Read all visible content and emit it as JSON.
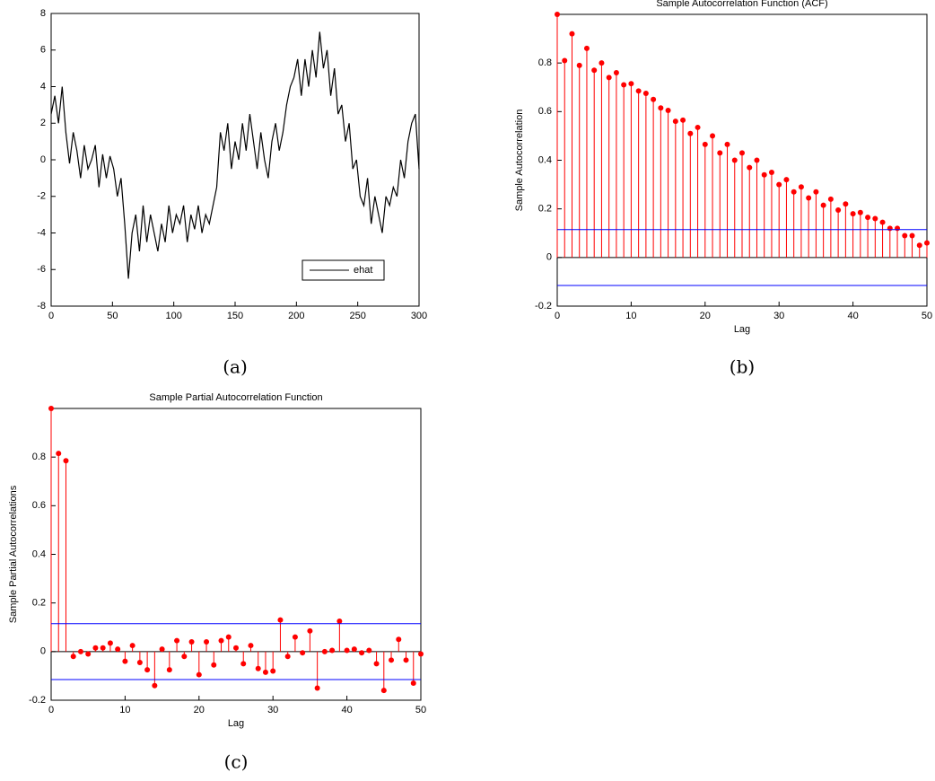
{
  "chart_data": [
    {
      "type": "line",
      "caption": "(a)",
      "x": [
        0,
        3,
        6,
        9,
        12,
        15,
        18,
        21,
        24,
        27,
        30,
        33,
        36,
        39,
        42,
        45,
        48,
        51,
        54,
        57,
        60,
        63,
        66,
        69,
        72,
        75,
        78,
        81,
        84,
        87,
        90,
        93,
        96,
        99,
        102,
        105,
        108,
        111,
        114,
        117,
        120,
        123,
        126,
        129,
        132,
        135,
        138,
        141,
        144,
        147,
        150,
        153,
        156,
        159,
        162,
        165,
        168,
        171,
        174,
        177,
        180,
        183,
        186,
        189,
        192,
        195,
        198,
        201,
        204,
        207,
        210,
        213,
        216,
        219,
        222,
        225,
        228,
        231,
        234,
        237,
        240,
        243,
        246,
        249,
        252,
        255,
        258,
        261,
        264,
        267,
        270,
        273,
        276,
        279,
        282,
        285,
        288,
        291,
        294,
        297,
        300
      ],
      "series": [
        {
          "name": "ehat",
          "color": "#000000",
          "values": [
            2.5,
            3.5,
            2,
            4,
            1.5,
            -0.2,
            1.5,
            0.5,
            -1,
            0.8,
            -0.5,
            0,
            0.8,
            -1.5,
            0.3,
            -1,
            0.2,
            -0.5,
            -2,
            -1,
            -3.5,
            -6.5,
            -4,
            -3,
            -5,
            -2.5,
            -4.5,
            -3,
            -4,
            -5,
            -3.5,
            -4.5,
            -2.5,
            -4,
            -3,
            -3.5,
            -2.5,
            -4.5,
            -3,
            -3.8,
            -2.5,
            -4,
            -3,
            -3.5,
            -2.5,
            -1.5,
            1.5,
            0.5,
            2,
            -0.5,
            1,
            0,
            2,
            0.5,
            2.5,
            1,
            -0.5,
            1.5,
            0,
            -1,
            1,
            2,
            0.5,
            1.5,
            3,
            4,
            4.5,
            5.5,
            3.5,
            5.5,
            4,
            6,
            4.5,
            7,
            5,
            6,
            3.5,
            5,
            2.5,
            3,
            1,
            2,
            -0.5,
            0,
            -2,
            -2.5,
            -1,
            -3.5,
            -2,
            -3,
            -4,
            -2,
            -2.5,
            -1.5,
            -2,
            0,
            -1,
            1,
            2,
            2.5,
            -0.5
          ]
        }
      ],
      "xlim": [
        0,
        300
      ],
      "xticks": [
        0,
        50,
        100,
        150,
        200,
        250,
        300
      ],
      "ylim": [
        -8,
        8
      ],
      "yticks": [
        -8,
        -6,
        -4,
        -2,
        0,
        2,
        4,
        6,
        8
      ],
      "legend": "lower right"
    },
    {
      "type": "stem",
      "title": "Sample Autocorrelation Function (ACF)",
      "xlabel": "Lag",
      "ylabel": "Sample Autocorrelation",
      "caption": "(b)",
      "color": "#ff0000",
      "bounds_color": "#0000ff",
      "values": [
        1.0,
        0.81,
        0.92,
        0.79,
        0.86,
        0.77,
        0.8,
        0.74,
        0.76,
        0.71,
        0.715,
        0.685,
        0.675,
        0.65,
        0.615,
        0.605,
        0.56,
        0.565,
        0.51,
        0.535,
        0.465,
        0.5,
        0.43,
        0.465,
        0.4,
        0.43,
        0.37,
        0.4,
        0.34,
        0.35,
        0.3,
        0.32,
        0.27,
        0.29,
        0.245,
        0.27,
        0.215,
        0.24,
        0.195,
        0.22,
        0.18,
        0.185,
        0.165,
        0.16,
        0.145,
        0.12,
        0.12,
        0.09,
        0.09,
        0.05,
        0.06
      ],
      "bounds": [
        0.115,
        -0.115
      ],
      "xlim": [
        0,
        50
      ],
      "xticks": [
        0,
        10,
        20,
        30,
        40,
        50
      ],
      "ylim": [
        -0.2,
        1
      ],
      "yticks": [
        -0.2,
        0,
        0.2,
        0.4,
        0.6,
        0.8
      ]
    },
    {
      "type": "stem",
      "title": "Sample Partial Autocorrelation Function",
      "xlabel": "Lag",
      "ylabel": "Sample Partial Autocorrelations",
      "caption": "(c)",
      "color": "#ff0000",
      "bounds_color": "#0000ff",
      "values": [
        1,
        0.815,
        0.785,
        -0.02,
        0,
        -0.01,
        0.015,
        0.015,
        0.035,
        0.01,
        -0.04,
        0.025,
        -0.045,
        -0.075,
        -0.14,
        0.01,
        -0.075,
        0.045,
        -0.02,
        0.04,
        -0.095,
        0.04,
        -0.055,
        0.045,
        0.06,
        0.015,
        -0.05,
        0.025,
        -0.07,
        -0.085,
        -0.08,
        0.13,
        -0.02,
        0.06,
        -0.005,
        0.085,
        -0.15,
        0,
        0.005,
        0.125,
        0.005,
        0.01,
        -0.005,
        0.005,
        -0.05,
        -0.16,
        -0.035,
        0.05,
        -0.035,
        -0.13,
        -0.01
      ],
      "bounds": [
        0.115,
        -0.115
      ],
      "xlim": [
        0,
        50
      ],
      "xticks": [
        0,
        10,
        20,
        30,
        40,
        50
      ],
      "ylim": [
        -0.2,
        1
      ],
      "yticks": [
        -0.2,
        0,
        0.2,
        0.4,
        0.6,
        0.8
      ]
    }
  ]
}
